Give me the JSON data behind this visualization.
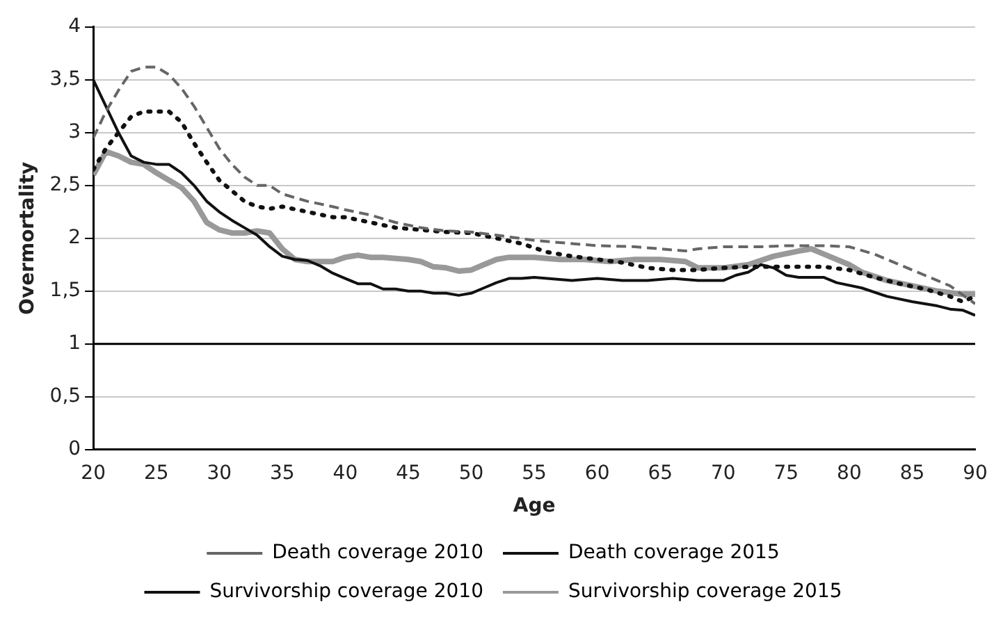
{
  "chart_data": {
    "type": "line",
    "xlabel": "Age",
    "ylabel": "Overmortality",
    "xlim": [
      20,
      90
    ],
    "xticks": [
      20,
      25,
      30,
      35,
      40,
      45,
      50,
      55,
      60,
      65,
      70,
      75,
      80,
      85,
      90
    ],
    "ylim": [
      0,
      4
    ],
    "yticks": [
      0,
      {
        "value": 0.5,
        "label": "0,5"
      },
      1,
      {
        "value": 1.5,
        "label": "1,5"
      },
      2,
      {
        "value": 2.5,
        "label": "2,5"
      },
      3,
      {
        "value": 3.5,
        "label": "3,5"
      },
      4
    ],
    "grid": "y",
    "legend": "bottom",
    "marker": "none",
    "ref_lines": [
      {
        "axis": "y",
        "value": 1,
        "color": "#000000"
      }
    ],
    "series": [
      {
        "name": "Death coverage 2010",
        "color": "#666666",
        "line_style": "dashed",
        "x": [
          20,
          21,
          22,
          23,
          24,
          25,
          26,
          27,
          28,
          29,
          30,
          31,
          32,
          33,
          34,
          35,
          37,
          39,
          40,
          42,
          44,
          46,
          48,
          50,
          52,
          55,
          58,
          60,
          63,
          65,
          67,
          68,
          70,
          73,
          75,
          78,
          80,
          82,
          84,
          86,
          88,
          90
        ],
        "values": [
          2.95,
          3.2,
          3.4,
          3.58,
          3.62,
          3.62,
          3.55,
          3.42,
          3.25,
          3.05,
          2.85,
          2.7,
          2.58,
          2.5,
          2.5,
          2.42,
          2.35,
          2.3,
          2.27,
          2.22,
          2.15,
          2.1,
          2.07,
          2.06,
          2.03,
          1.98,
          1.95,
          1.93,
          1.92,
          1.9,
          1.88,
          1.9,
          1.92,
          1.92,
          1.93,
          1.93,
          1.92,
          1.85,
          1.75,
          1.65,
          1.55,
          1.38
        ]
      },
      {
        "name": "Death coverage 2015",
        "color": "#111111",
        "line_style": "solid",
        "x": [
          20,
          21,
          22,
          23,
          24,
          25,
          26,
          27,
          28,
          29,
          30,
          31,
          32,
          33,
          34,
          35,
          36,
          37,
          38,
          39,
          40,
          41,
          42,
          43,
          44,
          45,
          46,
          47,
          48,
          49,
          50,
          51,
          52,
          53,
          54,
          55,
          56,
          58,
          60,
          62,
          64,
          66,
          68,
          70,
          71,
          72,
          73,
          74,
          75,
          76,
          78,
          79,
          81,
          83,
          85,
          87,
          88,
          89,
          90
        ],
        "values": [
          3.5,
          3.25,
          3.0,
          2.78,
          2.72,
          2.7,
          2.7,
          2.62,
          2.5,
          2.35,
          2.25,
          2.17,
          2.1,
          2.03,
          1.92,
          1.83,
          1.8,
          1.79,
          1.74,
          1.67,
          1.62,
          1.57,
          1.57,
          1.52,
          1.52,
          1.5,
          1.5,
          1.48,
          1.48,
          1.46,
          1.48,
          1.53,
          1.58,
          1.62,
          1.62,
          1.63,
          1.62,
          1.6,
          1.62,
          1.6,
          1.6,
          1.62,
          1.6,
          1.6,
          1.65,
          1.68,
          1.75,
          1.72,
          1.65,
          1.63,
          1.63,
          1.58,
          1.53,
          1.45,
          1.4,
          1.36,
          1.33,
          1.32,
          1.27
        ]
      },
      {
        "name": "Survivorship coverage 2010",
        "color": "#111111",
        "line_style": "dotted",
        "x": [
          20,
          21,
          22,
          23,
          24,
          25,
          26,
          27,
          28,
          29,
          30,
          31,
          32,
          33,
          34,
          35,
          37,
          39,
          40,
          42,
          44,
          46,
          48,
          50,
          52,
          54,
          56,
          58,
          60,
          62,
          64,
          66,
          68,
          70,
          72,
          75,
          78,
          80,
          82,
          84,
          86,
          88,
          89,
          90
        ],
        "values": [
          2.65,
          2.85,
          3.0,
          3.15,
          3.2,
          3.2,
          3.2,
          3.1,
          2.9,
          2.72,
          2.55,
          2.45,
          2.35,
          2.3,
          2.28,
          2.3,
          2.25,
          2.2,
          2.2,
          2.15,
          2.1,
          2.08,
          2.06,
          2.05,
          2.0,
          1.95,
          1.87,
          1.83,
          1.8,
          1.77,
          1.72,
          1.7,
          1.7,
          1.72,
          1.73,
          1.73,
          1.73,
          1.7,
          1.63,
          1.57,
          1.52,
          1.45,
          1.4,
          1.45
        ]
      },
      {
        "name": "Survivorship coverage 2015",
        "color": "#999999",
        "line_style": "solid",
        "x": [
          20,
          21,
          22,
          23,
          24,
          25,
          26,
          27,
          28,
          29,
          30,
          31,
          32,
          33,
          34,
          35,
          36,
          37,
          38,
          39,
          40,
          41,
          42,
          43,
          45,
          46,
          47,
          48,
          49,
          50,
          51,
          52,
          53,
          55,
          57,
          59,
          61,
          63,
          65,
          67,
          68,
          70,
          72,
          74,
          76,
          77,
          78,
          80,
          81,
          83,
          85,
          87,
          89,
          90
        ],
        "values": [
          2.6,
          2.82,
          2.78,
          2.72,
          2.7,
          2.62,
          2.55,
          2.48,
          2.35,
          2.15,
          2.08,
          2.05,
          2.05,
          2.07,
          2.05,
          1.9,
          1.8,
          1.78,
          1.78,
          1.78,
          1.82,
          1.84,
          1.82,
          1.82,
          1.8,
          1.78,
          1.73,
          1.72,
          1.69,
          1.7,
          1.75,
          1.8,
          1.82,
          1.82,
          1.8,
          1.8,
          1.78,
          1.8,
          1.8,
          1.78,
          1.72,
          1.72,
          1.75,
          1.83,
          1.88,
          1.9,
          1.85,
          1.75,
          1.68,
          1.6,
          1.55,
          1.5,
          1.47,
          1.47
        ]
      }
    ]
  }
}
